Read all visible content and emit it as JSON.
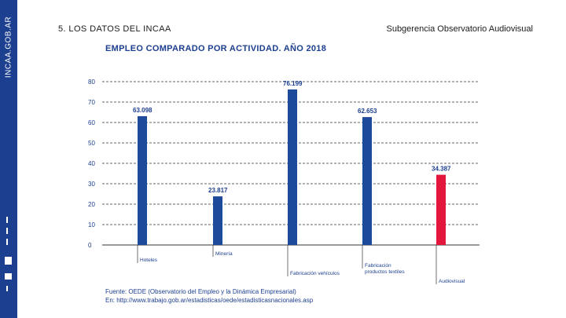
{
  "sidebar": {
    "label": "INCAA.GOB.AR"
  },
  "header": {
    "section_title": "5. LOS DATOS DEL INCAA",
    "org_name": "Subgerencia Observatorio Audiovisual"
  },
  "colors": {
    "brand_blue": "#1c3f8f",
    "bar_blue": "#1d4a9a",
    "bar_red": "#e3173e",
    "grid": "#333333"
  },
  "chart_data": {
    "type": "bar",
    "title": "EMPLEO COMPARADO POR ACTIVIDAD. AÑO 2018",
    "categories": [
      "Hoteles",
      "Minería",
      "Fabricación vehículos",
      "Fabricación productos textiles",
      "Audiovisual"
    ],
    "category_lines": [
      [
        "Hoteles"
      ],
      [
        "Minería"
      ],
      [
        "Fabricación vehículos"
      ],
      [
        "Fabricación",
        "productos textiles"
      ],
      [
        "Audiovisual"
      ]
    ],
    "values": [
      63.098,
      23.817,
      76.199,
      62.653,
      34.387
    ],
    "value_labels": [
      "63.098",
      "23.817",
      "76.199",
      "62.653",
      "34.387"
    ],
    "highlight": [
      false,
      false,
      false,
      false,
      true
    ],
    "yticks": [
      0,
      10,
      20,
      30,
      40,
      50,
      60,
      70,
      80
    ],
    "ylim": [
      0,
      80
    ],
    "xlabel": "",
    "ylabel": "",
    "grid": true,
    "legend": "none"
  },
  "source": {
    "line1": "Fuente: OEDE (Observatorio del Empleo y la Dinámica Empresarial)",
    "line2": "En: http://www.trabajo.gob.ar/estadisticas/oede/estadisticasnacionales.asp"
  }
}
